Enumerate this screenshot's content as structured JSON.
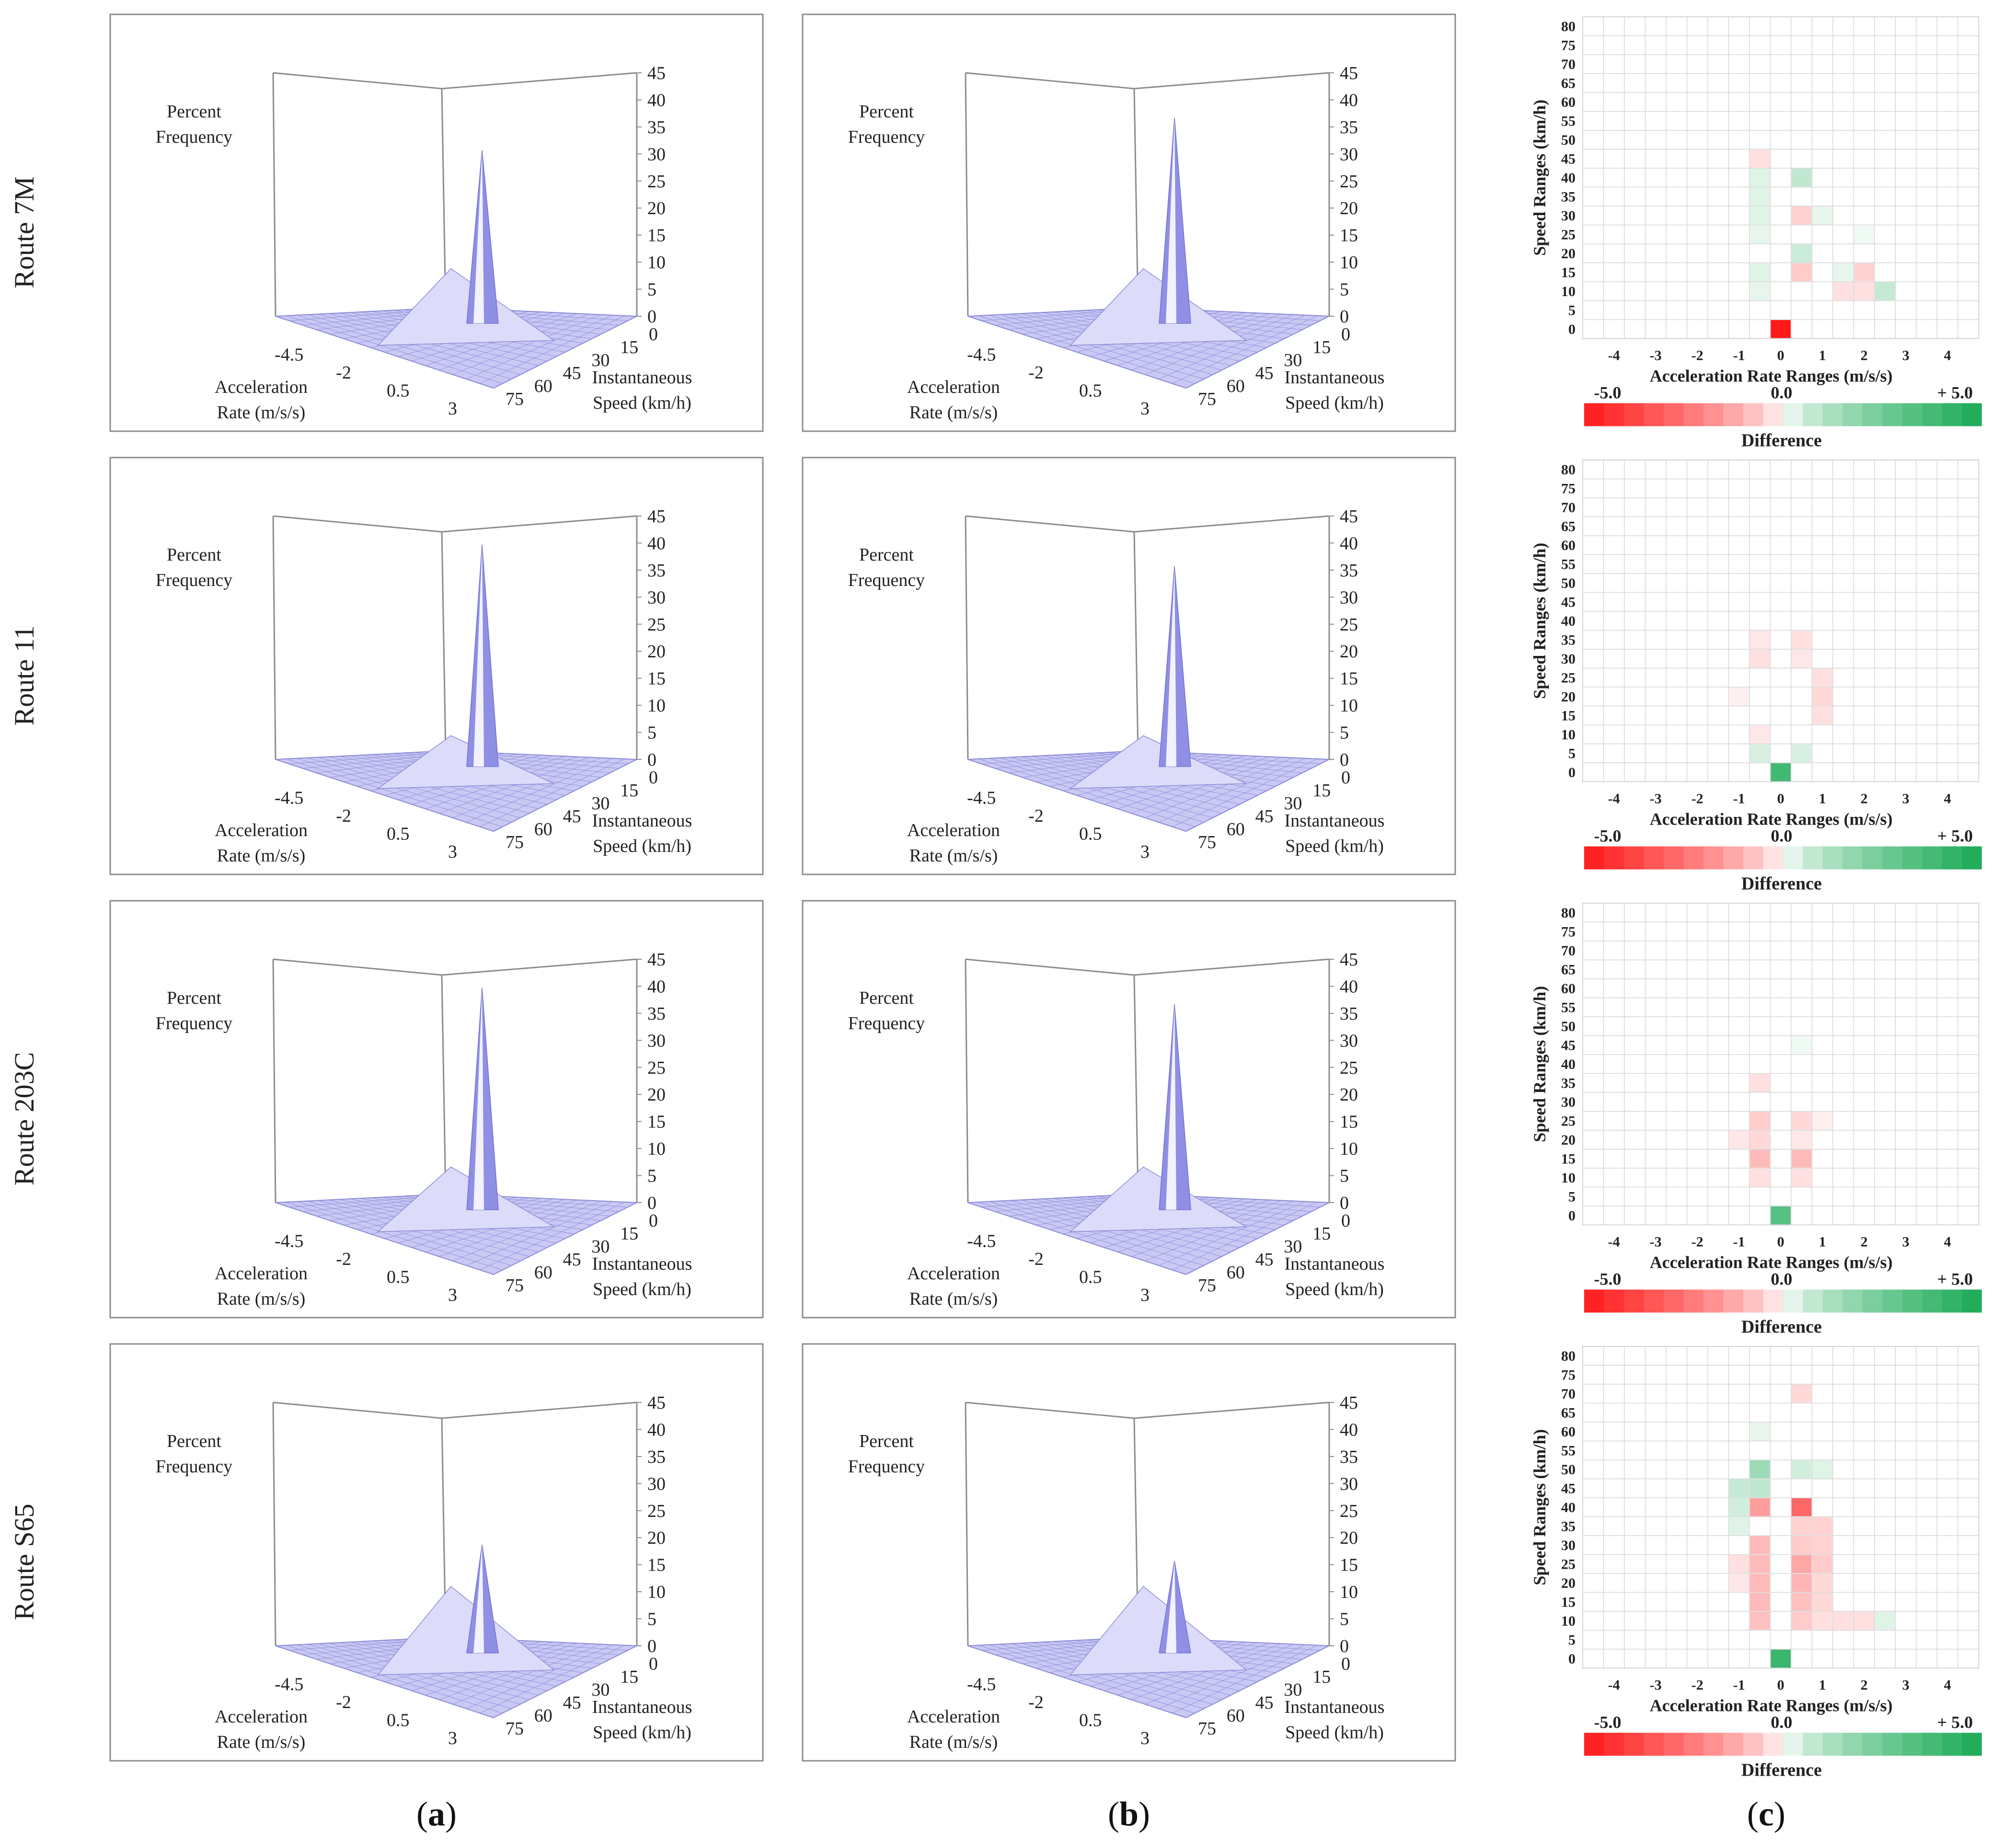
{
  "figure": {
    "route_labels": [
      "Route 7M",
      "Route 11",
      "Route 203C",
      "Route S65"
    ],
    "column_labels": [
      "a",
      "b",
      "c"
    ],
    "panel_text": {
      "z_label_line1": "Percent",
      "z_label_line2": "Frequency",
      "accel_label_line1": "Acceleration",
      "accel_label_line2": "Rate (m/s/s)",
      "speed_label_line1": "Instantaneous",
      "speed_label_line2": "Speed (km/h)",
      "z_ticks": [
        "0",
        "5",
        "10",
        "15",
        "20",
        "25",
        "30",
        "35",
        "40",
        "45"
      ],
      "accel_ticks": [
        "-4.5",
        "-2",
        "0.5",
        "3"
      ],
      "speed_ticks": [
        "0",
        "15",
        "30",
        "45",
        "60",
        "75"
      ]
    },
    "heatmap_text": {
      "y_title": "Speed Ranges (km/h)",
      "x_title": "Acceleration Rate Ranges (m/s/s)",
      "y_ticks": [
        "0",
        "5",
        "10",
        "15",
        "20",
        "25",
        "30",
        "35",
        "40",
        "45",
        "50",
        "55",
        "60",
        "65",
        "70",
        "75",
        "80"
      ],
      "x_ticks": [
        "-4",
        "-3",
        "-2",
        "-1",
        "0",
        "1",
        "2",
        "3",
        "4"
      ],
      "legend_min": "-5.0",
      "legend_mid": "0.0",
      "legend_max": "+ 5.0",
      "legend_title": "Difference"
    },
    "colors": {
      "surface_fill": "#c9c9f4",
      "surface_line": "#8a8ad8",
      "peak_fill": "#8f8fe6",
      "axis": "#8c8c8c",
      "grid": "#c8c8c8",
      "negative": "#ff1a1a",
      "positive": "#1aaa55"
    }
  },
  "chart_data": [
    {
      "type": "surface3d",
      "route": "Route 7M",
      "column": "a",
      "xlabel": "Acceleration Rate (m/s/s)",
      "ylabel": "Instantaneous Speed (km/h)",
      "zlabel": "Percent Frequency",
      "zlim": [
        0,
        45
      ],
      "peak": {
        "acceleration": 0,
        "speed": 0,
        "percent": 32
      },
      "secondary_mound_percent": 5
    },
    {
      "type": "surface3d",
      "route": "Route 7M",
      "column": "b",
      "xlabel": "Acceleration Rate (m/s/s)",
      "ylabel": "Instantaneous Speed (km/h)",
      "zlabel": "Percent Frequency",
      "zlim": [
        0,
        45
      ],
      "peak": {
        "acceleration": 0,
        "speed": 0,
        "percent": 38
      },
      "secondary_mound_percent": 5
    },
    {
      "type": "surface3d",
      "route": "Route 11",
      "column": "a",
      "xlabel": "Acceleration Rate (m/s/s)",
      "ylabel": "Instantaneous Speed (km/h)",
      "zlabel": "Percent Frequency",
      "zlim": [
        0,
        45
      ],
      "peak": {
        "acceleration": 0,
        "speed": 0,
        "percent": 41
      },
      "secondary_mound_percent": 3
    },
    {
      "type": "surface3d",
      "route": "Route 11",
      "column": "b",
      "xlabel": "Acceleration Rate (m/s/s)",
      "ylabel": "Instantaneous Speed (km/h)",
      "zlabel": "Percent Frequency",
      "zlim": [
        0,
        45
      ],
      "peak": {
        "acceleration": 0,
        "speed": 0,
        "percent": 37
      },
      "secondary_mound_percent": 3
    },
    {
      "type": "surface3d",
      "route": "Route 203C",
      "column": "a",
      "xlabel": "Acceleration Rate (m/s/s)",
      "ylabel": "Instantaneous Speed (km/h)",
      "zlabel": "Percent Frequency",
      "zlim": [
        0,
        45
      ],
      "peak": {
        "acceleration": 0,
        "speed": 0,
        "percent": 41
      },
      "secondary_mound_percent": 4
    },
    {
      "type": "surface3d",
      "route": "Route 203C",
      "column": "b",
      "xlabel": "Acceleration Rate (m/s/s)",
      "ylabel": "Instantaneous Speed (km/h)",
      "zlabel": "Percent Frequency",
      "zlim": [
        0,
        45
      ],
      "peak": {
        "acceleration": 0,
        "speed": 0,
        "percent": 38
      },
      "secondary_mound_percent": 4
    },
    {
      "type": "surface3d",
      "route": "Route S65",
      "column": "a",
      "xlabel": "Acceleration Rate (m/s/s)",
      "ylabel": "Instantaneous Speed (km/h)",
      "zlabel": "Percent Frequency",
      "zlim": [
        0,
        45
      ],
      "peak": {
        "acceleration": 0,
        "speed": 0,
        "percent": 20
      },
      "secondary_mound_percent": 6
    },
    {
      "type": "surface3d",
      "route": "Route S65",
      "column": "b",
      "xlabel": "Acceleration Rate (m/s/s)",
      "ylabel": "Instantaneous Speed (km/h)",
      "zlabel": "Percent Frequency",
      "zlim": [
        0,
        45
      ],
      "peak": {
        "acceleration": 0,
        "speed": 0,
        "percent": 17
      },
      "secondary_mound_percent": 6
    },
    {
      "type": "heatmap",
      "route": "Route 7M",
      "column": "c",
      "xlabel": "Acceleration Rate Ranges (m/s/s)",
      "ylabel": "Speed Ranges (km/h)",
      "value_range": [
        -5,
        5
      ],
      "legend_title": "Difference",
      "cells": [
        [
          0,
          0,
          -5.0
        ],
        [
          -0.5,
          45,
          -0.3
        ],
        [
          -0.5,
          40,
          0.3
        ],
        [
          -0.5,
          35,
          0.3
        ],
        [
          -0.5,
          30,
          0.3
        ],
        [
          -0.5,
          25,
          0.2
        ],
        [
          -0.5,
          15,
          0.3
        ],
        [
          -0.5,
          10,
          0.2
        ],
        [
          0.5,
          40,
          0.8
        ],
        [
          0.5,
          30,
          -0.5
        ],
        [
          0.5,
          20,
          0.6
        ],
        [
          0.5,
          15,
          -0.6
        ],
        [
          1,
          30,
          0.2
        ],
        [
          1.5,
          10,
          -0.3
        ],
        [
          2,
          15,
          -0.5
        ],
        [
          2,
          10,
          -0.3
        ],
        [
          2.5,
          10,
          0.7
        ],
        [
          1.5,
          15,
          0.2
        ],
        [
          2,
          25,
          0.1
        ]
      ]
    },
    {
      "type": "heatmap",
      "route": "Route 11",
      "column": "c",
      "xlabel": "Acceleration Rate Ranges (m/s/s)",
      "ylabel": "Speed Ranges (km/h)",
      "value_range": [
        -5,
        5
      ],
      "legend_title": "Difference",
      "cells": [
        [
          0,
          0,
          3.8
        ],
        [
          -0.5,
          5,
          0.4
        ],
        [
          -0.5,
          10,
          -0.2
        ],
        [
          -0.5,
          30,
          -0.3
        ],
        [
          -0.5,
          35,
          -0.2
        ],
        [
          0.5,
          35,
          -0.3
        ],
        [
          0.5,
          5,
          0.4
        ],
        [
          1,
          20,
          -0.4
        ],
        [
          1,
          25,
          -0.3
        ],
        [
          1,
          15,
          -0.3
        ],
        [
          -1,
          20,
          -0.1
        ],
        [
          0.5,
          30,
          -0.2
        ]
      ]
    },
    {
      "type": "heatmap",
      "route": "Route 203C",
      "column": "c",
      "xlabel": "Acceleration Rate Ranges (m/s/s)",
      "ylabel": "Speed Ranges (km/h)",
      "value_range": [
        -5,
        5
      ],
      "legend_title": "Difference",
      "cells": [
        [
          0,
          0,
          3.2
        ],
        [
          -0.5,
          35,
          -0.3
        ],
        [
          -0.5,
          25,
          -0.6
        ],
        [
          -0.5,
          20,
          -0.4
        ],
        [
          -0.5,
          15,
          -0.9
        ],
        [
          -0.5,
          10,
          -0.3
        ],
        [
          0.5,
          25,
          -0.4
        ],
        [
          0.5,
          20,
          -0.2
        ],
        [
          0.5,
          15,
          -0.9
        ],
        [
          0.5,
          10,
          -0.3
        ],
        [
          -1,
          20,
          -0.2
        ],
        [
          1,
          25,
          -0.1
        ],
        [
          0.5,
          45,
          0.1
        ]
      ]
    },
    {
      "type": "heatmap",
      "route": "Route S65",
      "column": "c",
      "xlabel": "Acceleration Rate Ranges (m/s/s)",
      "ylabel": "Speed Ranges (km/h)",
      "value_range": [
        -5,
        5
      ],
      "legend_title": "Difference",
      "cells": [
        [
          0,
          0,
          4.0
        ],
        [
          -0.5,
          50,
          1.5
        ],
        [
          -0.5,
          45,
          0.8
        ],
        [
          -0.5,
          40,
          -1.5
        ],
        [
          -0.5,
          30,
          -0.9
        ],
        [
          -0.5,
          25,
          -0.9
        ],
        [
          -0.5,
          20,
          -0.9
        ],
        [
          -0.5,
          15,
          -0.9
        ],
        [
          -0.5,
          10,
          -0.8
        ],
        [
          0.5,
          70,
          -0.4
        ],
        [
          0.5,
          40,
          -2.8
        ],
        [
          0.5,
          35,
          -0.5
        ],
        [
          0.5,
          30,
          -0.6
        ],
        [
          0.5,
          25,
          -1.3
        ],
        [
          0.5,
          20,
          -1.0
        ],
        [
          0.5,
          15,
          -0.8
        ],
        [
          0.5,
          10,
          -0.6
        ],
        [
          1,
          35,
          -0.5
        ],
        [
          1,
          30,
          -0.5
        ],
        [
          1,
          25,
          -0.6
        ],
        [
          1,
          20,
          -0.4
        ],
        [
          1,
          15,
          -0.4
        ],
        [
          1,
          10,
          -0.3
        ],
        [
          -1,
          45,
          0.7
        ],
        [
          -1,
          40,
          0.5
        ],
        [
          -1,
          35,
          0.3
        ],
        [
          0.5,
          50,
          0.5
        ],
        [
          1,
          50,
          0.3
        ],
        [
          1.5,
          10,
          -0.3
        ],
        [
          2,
          10,
          -0.3
        ],
        [
          2.5,
          10,
          0.3
        ],
        [
          -1,
          25,
          -0.3
        ],
        [
          -1,
          20,
          -0.2
        ],
        [
          -0.5,
          60,
          0.2
        ]
      ]
    }
  ]
}
